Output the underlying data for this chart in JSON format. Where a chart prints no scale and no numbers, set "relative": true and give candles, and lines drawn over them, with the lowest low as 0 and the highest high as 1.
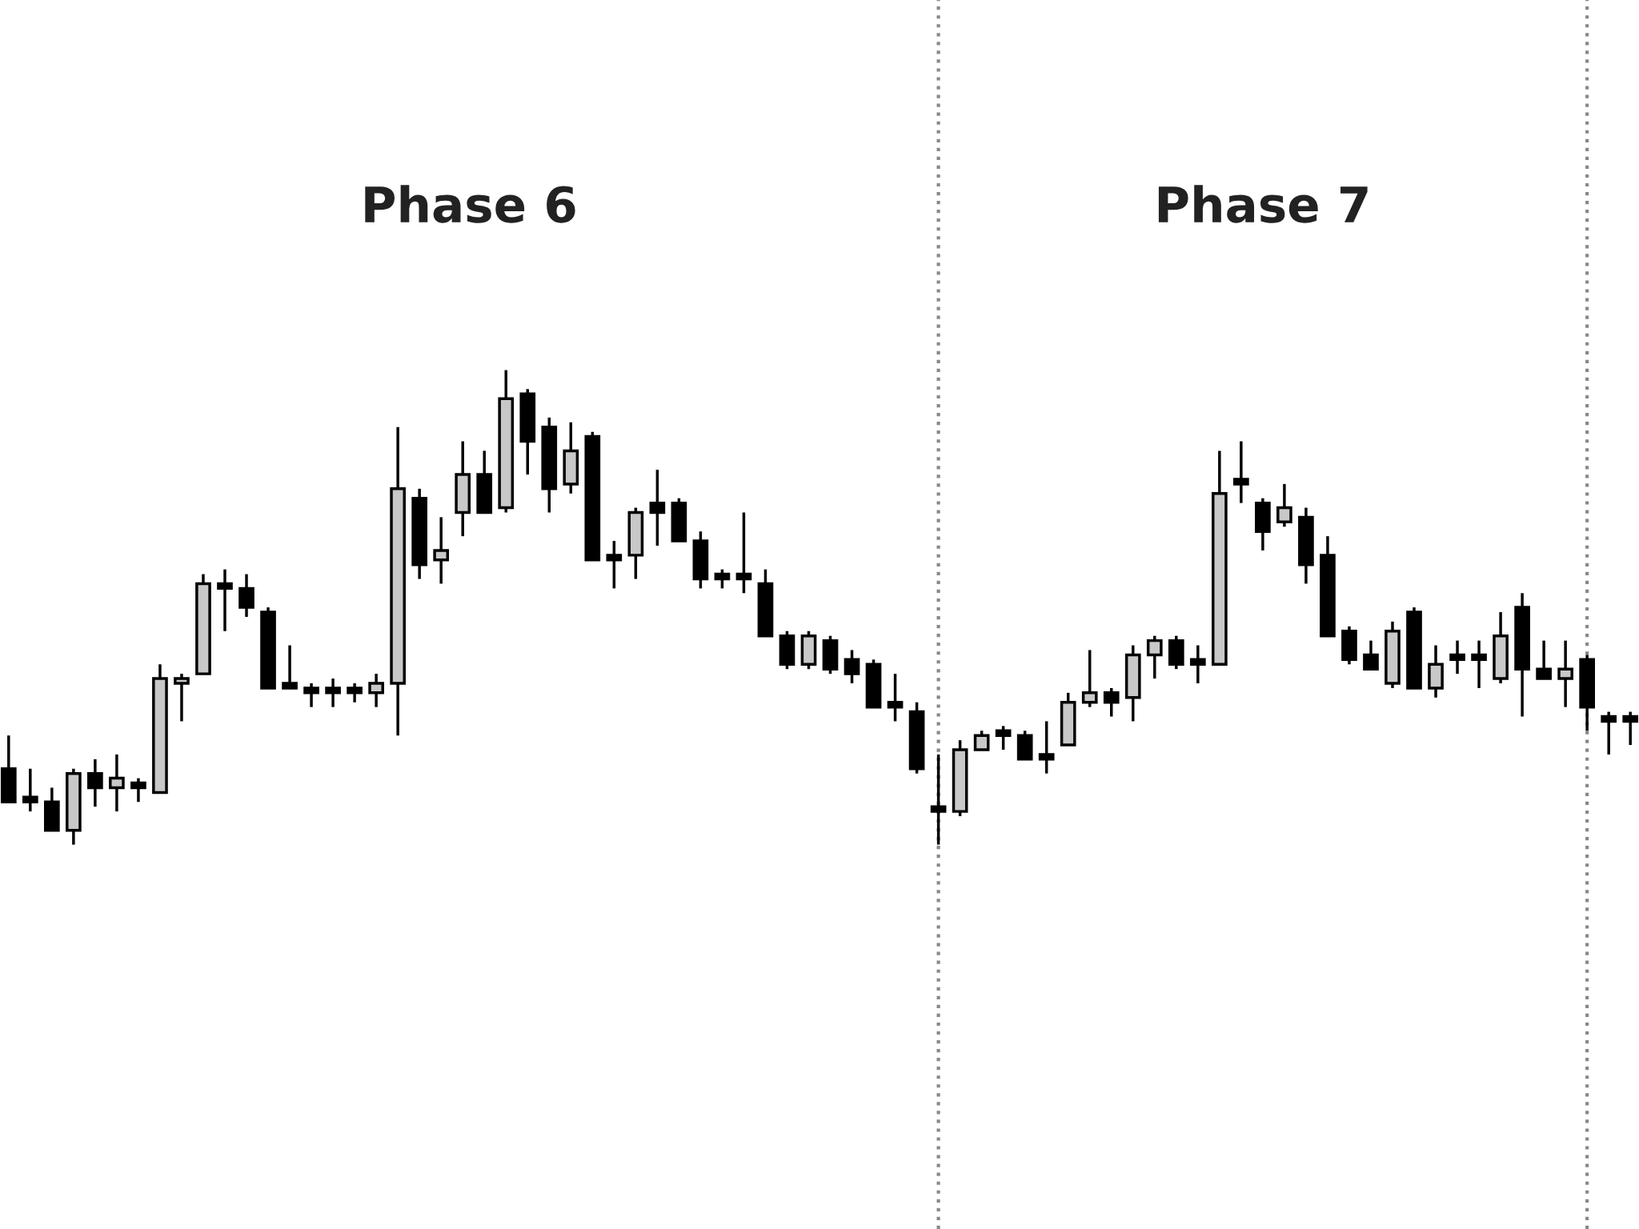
{
  "chart_data": {
    "type": "candlestick",
    "relative": true,
    "color": "#000000",
    "categories": [
      null,
      null,
      null,
      null,
      null,
      null,
      null,
      null,
      null,
      null,
      null,
      null,
      null,
      null,
      null,
      null,
      null,
      null,
      null,
      null,
      null,
      null,
      null,
      null,
      null,
      null,
      null,
      null,
      null,
      null,
      null,
      null,
      null,
      null,
      null,
      null,
      null,
      null,
      null,
      null,
      null,
      null,
      null,
      null,
      null,
      null,
      null,
      null,
      null,
      null,
      null,
      null,
      null,
      null,
      null,
      null,
      null,
      null,
      null,
      null,
      null,
      null,
      null,
      null,
      null,
      null,
      null,
      null,
      null,
      null,
      null,
      null,
      null,
      null,
      null,
      null
    ],
    "ohlc": [
      [
        0.16,
        0.23,
        0.09,
        0.09
      ],
      [
        0.1,
        0.16,
        0.07,
        0.09
      ],
      [
        0.09,
        0.12,
        0.03,
        0.03
      ],
      [
        0.03,
        0.16,
        0,
        0.15
      ],
      [
        0.15,
        0.18,
        0.08,
        0.12
      ],
      [
        0.12,
        0.19,
        0.07,
        0.14
      ],
      [
        0.13,
        0.14,
        0.09,
        0.12
      ],
      [
        0.11,
        0.38,
        0.11,
        0.35
      ],
      [
        0.34,
        0.36,
        0.26,
        0.35
      ],
      [
        0.36,
        0.57,
        0.36,
        0.55
      ],
      [
        0.55,
        0.58,
        0.45,
        0.54
      ],
      [
        0.54,
        0.57,
        0.48,
        0.5
      ],
      [
        0.49,
        0.5,
        0.33,
        0.33
      ],
      [
        0.34,
        0.42,
        0.33,
        0.33
      ],
      [
        0.33,
        0.34,
        0.29,
        0.32
      ],
      [
        0.33,
        0.35,
        0.29,
        0.32
      ],
      [
        0.33,
        0.34,
        0.3,
        0.32
      ],
      [
        0.32,
        0.36,
        0.29,
        0.34
      ],
      [
        0.34,
        0.88,
        0.23,
        0.75
      ],
      [
        0.73,
        0.75,
        0.56,
        0.59
      ],
      [
        0.6,
        0.69,
        0.55,
        0.62
      ],
      [
        0.7,
        0.85,
        0.65,
        0.78
      ],
      [
        0.78,
        0.83,
        0.7,
        0.7
      ],
      [
        0.71,
        1,
        0.7,
        0.94
      ],
      [
        0.95,
        0.96,
        0.78,
        0.85
      ],
      [
        0.88,
        0.9,
        0.7,
        0.75
      ],
      [
        0.76,
        0.89,
        0.74,
        0.83
      ],
      [
        0.86,
        0.87,
        0.6,
        0.6
      ],
      [
        0.61,
        0.64,
        0.54,
        0.6
      ],
      [
        0.61,
        0.71,
        0.56,
        0.7
      ],
      [
        0.72,
        0.79,
        0.63,
        0.7
      ],
      [
        0.72,
        0.73,
        0.64,
        0.64
      ],
      [
        0.64,
        0.66,
        0.54,
        0.56
      ],
      [
        0.57,
        0.58,
        0.54,
        0.56
      ],
      [
        0.57,
        0.7,
        0.53,
        0.56
      ],
      [
        0.55,
        0.58,
        0.44,
        0.44
      ],
      [
        0.44,
        0.45,
        0.37,
        0.38
      ],
      [
        0.38,
        0.45,
        0.37,
        0.44
      ],
      [
        0.43,
        0.44,
        0.36,
        0.37
      ],
      [
        0.39,
        0.41,
        0.34,
        0.36
      ],
      [
        0.38,
        0.39,
        0.29,
        0.29
      ],
      [
        0.3,
        0.36,
        0.26,
        0.29
      ],
      [
        0.28,
        0.3,
        0.15,
        0.16
      ],
      [
        0.08,
        0.19,
        0,
        0.07
      ],
      [
        0.07,
        0.22,
        0.06,
        0.2
      ],
      [
        0.2,
        0.24,
        0.2,
        0.23
      ],
      [
        0.24,
        0.25,
        0.2,
        0.23
      ],
      [
        0.23,
        0.24,
        0.18,
        0.18
      ],
      [
        0.19,
        0.26,
        0.15,
        0.18
      ],
      [
        0.21,
        0.32,
        0.21,
        0.3
      ],
      [
        0.3,
        0.41,
        0.29,
        0.32
      ],
      [
        0.32,
        0.33,
        0.27,
        0.3
      ],
      [
        0.31,
        0.42,
        0.26,
        0.4
      ],
      [
        0.4,
        0.44,
        0.35,
        0.43
      ],
      [
        0.43,
        0.44,
        0.37,
        0.38
      ],
      [
        0.39,
        0.42,
        0.34,
        0.38
      ],
      [
        0.38,
        0.83,
        0.38,
        0.74
      ],
      [
        0.77,
        0.85,
        0.72,
        0.76
      ],
      [
        0.72,
        0.73,
        0.62,
        0.66
      ],
      [
        0.68,
        0.76,
        0.67,
        0.71
      ],
      [
        0.69,
        0.71,
        0.55,
        0.59
      ],
      [
        0.61,
        0.65,
        0.44,
        0.44
      ],
      [
        0.45,
        0.46,
        0.38,
        0.39
      ],
      [
        0.4,
        0.43,
        0.37,
        0.37
      ],
      [
        0.34,
        0.47,
        0.33,
        0.45
      ],
      [
        0.49,
        0.5,
        0.33,
        0.33
      ],
      [
        0.33,
        0.42,
        0.31,
        0.38
      ],
      [
        0.4,
        0.43,
        0.36,
        0.39
      ],
      [
        0.4,
        0.43,
        0.33,
        0.39
      ],
      [
        0.35,
        0.49,
        0.34,
        0.44
      ],
      [
        0.5,
        0.53,
        0.27,
        0.37
      ],
      [
        0.37,
        0.43,
        0.35,
        0.35
      ],
      [
        0.35,
        0.43,
        0.29,
        0.37
      ],
      [
        0.39,
        0.4,
        0.24,
        0.29
      ],
      [
        0.27,
        0.28,
        0.19,
        0.26
      ],
      [
        0.27,
        0.28,
        0.21,
        0.26
      ]
    ],
    "annotations": [
      "Phase 6",
      "Phase 7"
    ]
  }
}
